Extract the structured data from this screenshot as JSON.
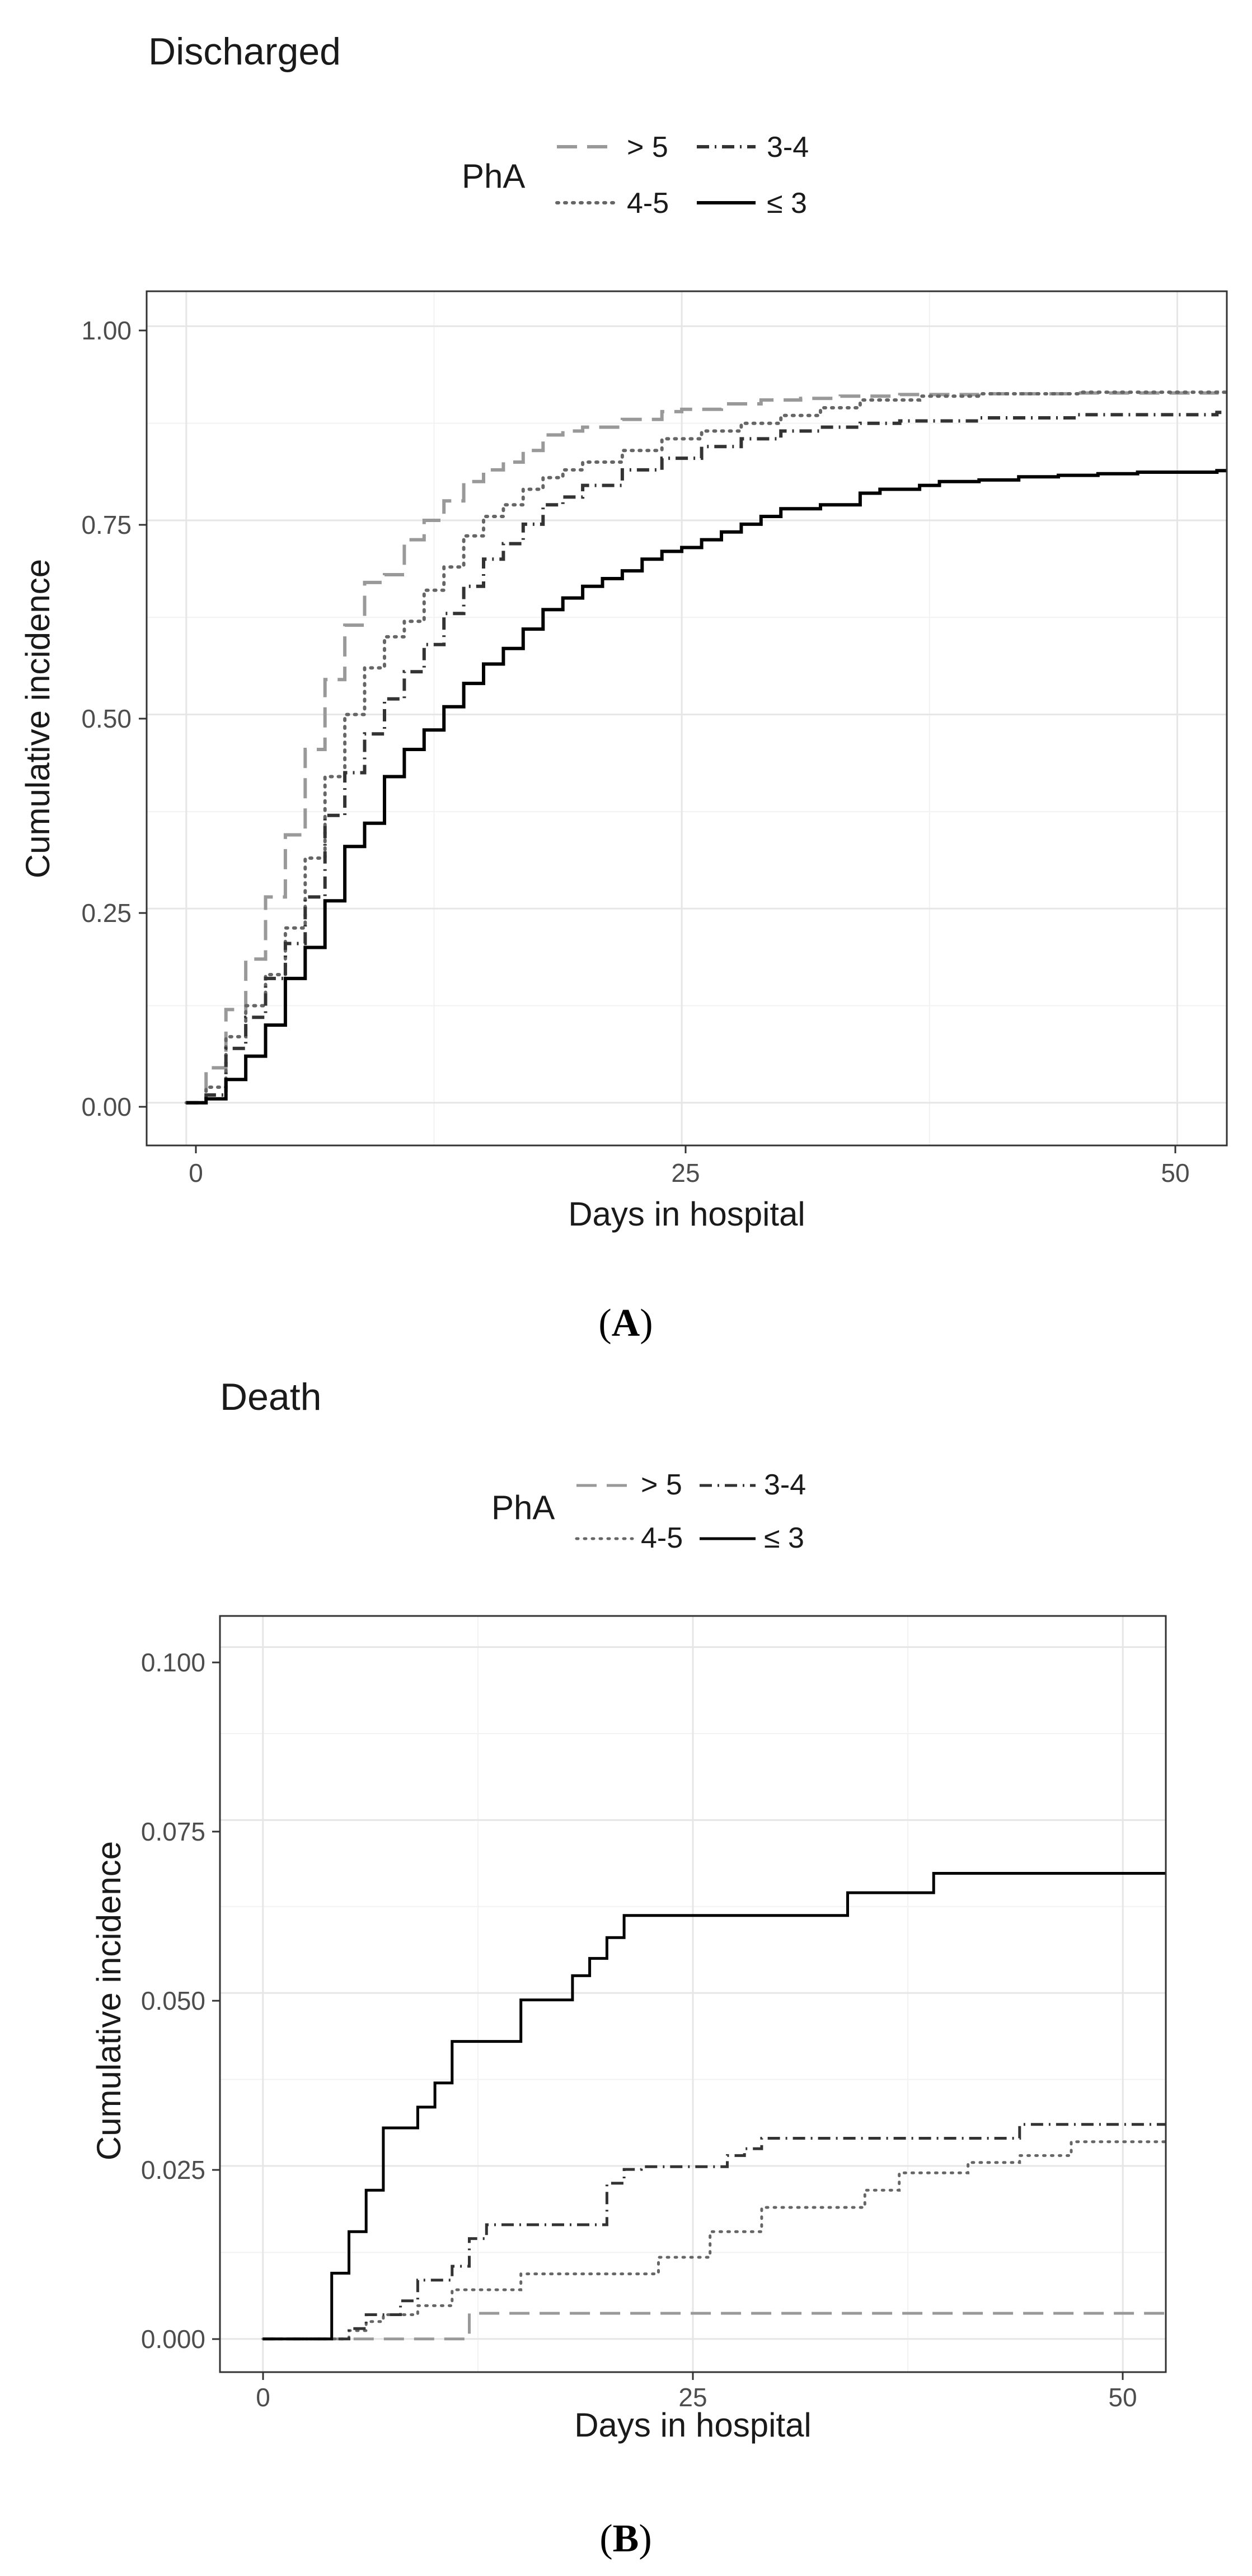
{
  "chart_data": [
    {
      "type": "line",
      "title": "Discharged",
      "xlabel": "Days in hospital",
      "ylabel": "Cumulative incidence",
      "xlim": [
        -2,
        52.5
      ],
      "ylim": [
        -0.055,
        1.045
      ],
      "xticks": [
        "0",
        "25",
        "50"
      ],
      "yticks": [
        "0.00",
        "0.25",
        "0.50",
        "0.75",
        "1.00"
      ],
      "legend_title": "PhA",
      "caption_label": "A",
      "series": [
        {
          "name": "> 5",
          "color": "#999999",
          "style": "longdash",
          "x": [
            0,
            1,
            2,
            3,
            4,
            5,
            6,
            7,
            8,
            9,
            10,
            11,
            12,
            13,
            14,
            15,
            16,
            17,
            18,
            19,
            20,
            22,
            24,
            25,
            27,
            29,
            31,
            33,
            36,
            40,
            45,
            52
          ],
          "y": [
            0,
            0.045,
            0.12,
            0.185,
            0.265,
            0.345,
            0.455,
            0.545,
            0.615,
            0.67,
            0.68,
            0.725,
            0.75,
            0.775,
            0.8,
            0.815,
            0.825,
            0.84,
            0.86,
            0.865,
            0.87,
            0.88,
            0.89,
            0.893,
            0.9,
            0.905,
            0.907,
            0.91,
            0.912,
            0.913,
            0.914,
            0.915
          ]
        },
        {
          "name": "4-5",
          "color": "#666666",
          "style": "dotted",
          "x": [
            0,
            1,
            2,
            3,
            4,
            5,
            6,
            7,
            8,
            9,
            10,
            11,
            12,
            13,
            14,
            15,
            16,
            17,
            18,
            19,
            20,
            22,
            24,
            26,
            28,
            30,
            32,
            34,
            37,
            40,
            45,
            52
          ],
          "y": [
            0,
            0.02,
            0.085,
            0.125,
            0.165,
            0.225,
            0.315,
            0.42,
            0.5,
            0.56,
            0.6,
            0.62,
            0.66,
            0.69,
            0.73,
            0.755,
            0.77,
            0.79,
            0.805,
            0.815,
            0.825,
            0.84,
            0.855,
            0.865,
            0.875,
            0.885,
            0.895,
            0.905,
            0.91,
            0.913,
            0.915,
            0.915
          ]
        },
        {
          "name": "3-4",
          "color": "#333333",
          "style": "dotdash",
          "x": [
            0,
            1,
            2,
            3,
            4,
            5,
            6,
            7,
            8,
            9,
            10,
            11,
            12,
            13,
            14,
            15,
            16,
            17,
            18,
            19,
            20,
            22,
            24,
            26,
            28,
            30,
            32,
            34,
            36,
            40,
            45,
            52
          ],
          "y": [
            0,
            0.01,
            0.07,
            0.11,
            0.16,
            0.205,
            0.265,
            0.37,
            0.425,
            0.475,
            0.52,
            0.555,
            0.59,
            0.63,
            0.665,
            0.7,
            0.72,
            0.745,
            0.77,
            0.78,
            0.795,
            0.815,
            0.83,
            0.845,
            0.855,
            0.865,
            0.87,
            0.875,
            0.878,
            0.882,
            0.886,
            0.889
          ]
        },
        {
          "name": "≤ 3",
          "color": "#000000",
          "style": "solid",
          "x": [
            0,
            1,
            2,
            3,
            4,
            5,
            6,
            7,
            8,
            9,
            10,
            11,
            12,
            13,
            14,
            15,
            16,
            17,
            18,
            19,
            20,
            21,
            22,
            23,
            24,
            25,
            26,
            27,
            28,
            29,
            30,
            32,
            34,
            35,
            37,
            38,
            39,
            40,
            42,
            44,
            46,
            48,
            52
          ],
          "y": [
            0,
            0.005,
            0.03,
            0.06,
            0.1,
            0.16,
            0.2,
            0.26,
            0.33,
            0.36,
            0.42,
            0.455,
            0.48,
            0.51,
            0.54,
            0.565,
            0.585,
            0.61,
            0.635,
            0.65,
            0.665,
            0.675,
            0.685,
            0.7,
            0.71,
            0.715,
            0.725,
            0.735,
            0.745,
            0.755,
            0.765,
            0.77,
            0.785,
            0.79,
            0.795,
            0.8,
            0.8,
            0.802,
            0.806,
            0.808,
            0.81,
            0.812,
            0.814
          ]
        }
      ]
    },
    {
      "type": "line",
      "title": "Death",
      "xlabel": "Days in hospital",
      "ylabel": "Cumulative incidence",
      "xlim": [
        -2.5,
        52.5
      ],
      "ylim": [
        -0.0048,
        0.1045
      ],
      "xticks": [
        "0",
        "25",
        "50"
      ],
      "yticks": [
        "0.000",
        "0.025",
        "0.050",
        "0.075",
        "0.100"
      ],
      "legend_title": "PhA",
      "caption_label": "B",
      "series": [
        {
          "name": "> 5",
          "color": "#999999",
          "style": "longdash",
          "x": [
            0,
            12,
            52.5
          ],
          "y": [
            0,
            0.0037,
            0.0037
          ]
        },
        {
          "name": "4-5",
          "color": "#666666",
          "style": "dotted",
          "x": [
            0,
            5,
            6,
            7,
            9,
            11,
            15,
            23,
            26,
            29,
            35,
            37,
            41,
            44,
            47,
            52.5
          ],
          "y": [
            0,
            0.0012,
            0.0025,
            0.0035,
            0.0048,
            0.0071,
            0.0094,
            0.0118,
            0.0155,
            0.019,
            0.0215,
            0.024,
            0.0255,
            0.0265,
            0.0285,
            0.0285
          ]
        },
        {
          "name": "3-4",
          "color": "#333333",
          "style": "dotdash",
          "x": [
            0,
            5,
            6,
            8,
            9,
            11,
            12,
            13,
            20,
            21,
            22,
            27,
            28,
            29,
            44,
            47,
            52.5
          ],
          "y": [
            0,
            0.0015,
            0.0035,
            0.0055,
            0.0085,
            0.0105,
            0.0145,
            0.0165,
            0.0225,
            0.0245,
            0.0249,
            0.0265,
            0.0275,
            0.029,
            0.031,
            0.031,
            0.031
          ]
        },
        {
          "name": "≤ 3",
          "color": "#000000",
          "style": "solid",
          "x": [
            0,
            4,
            5,
            6,
            7,
            9,
            10,
            11,
            15,
            18,
            19,
            20,
            21,
            34,
            39,
            52.5
          ],
          "y": [
            0,
            0.0095,
            0.0155,
            0.0215,
            0.0305,
            0.0335,
            0.037,
            0.043,
            0.049,
            0.0525,
            0.055,
            0.058,
            0.0612,
            0.0645,
            0.0673,
            0.0673
          ]
        }
      ]
    }
  ]
}
